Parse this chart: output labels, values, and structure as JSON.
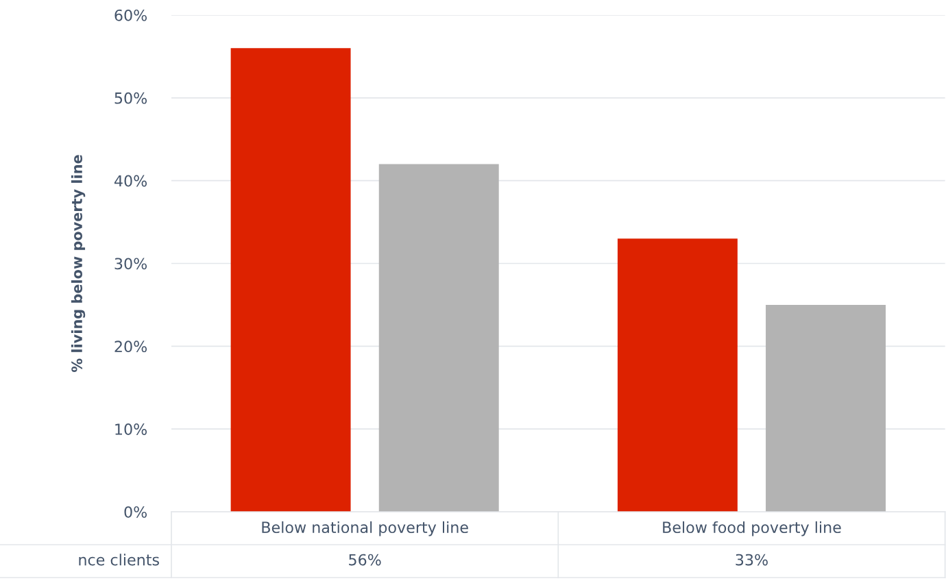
{
  "chart_data": {
    "type": "bar",
    "ylabel": "% living below poverty line",
    "categories": [
      "Below national poverty line",
      "Below food poverty line"
    ],
    "series": [
      {
        "name": "nce clients",
        "color": "#dd2200",
        "values": [
          56,
          33
        ],
        "value_labels": [
          "56%",
          "33%"
        ]
      },
      {
        "color": "#b3b3b3",
        "values": [
          42,
          25
        ]
      }
    ],
    "ylim": [
      0,
      60
    ],
    "yticks": [
      {
        "value": 0,
        "label": "0%"
      },
      {
        "value": 10,
        "label": "10%"
      },
      {
        "value": 20,
        "label": "20%"
      },
      {
        "value": 30,
        "label": "30%"
      },
      {
        "value": 40,
        "label": "40%"
      },
      {
        "value": 50,
        "label": "50%"
      },
      {
        "value": 60,
        "label": "60%"
      }
    ],
    "grid": "y",
    "legend": false
  }
}
